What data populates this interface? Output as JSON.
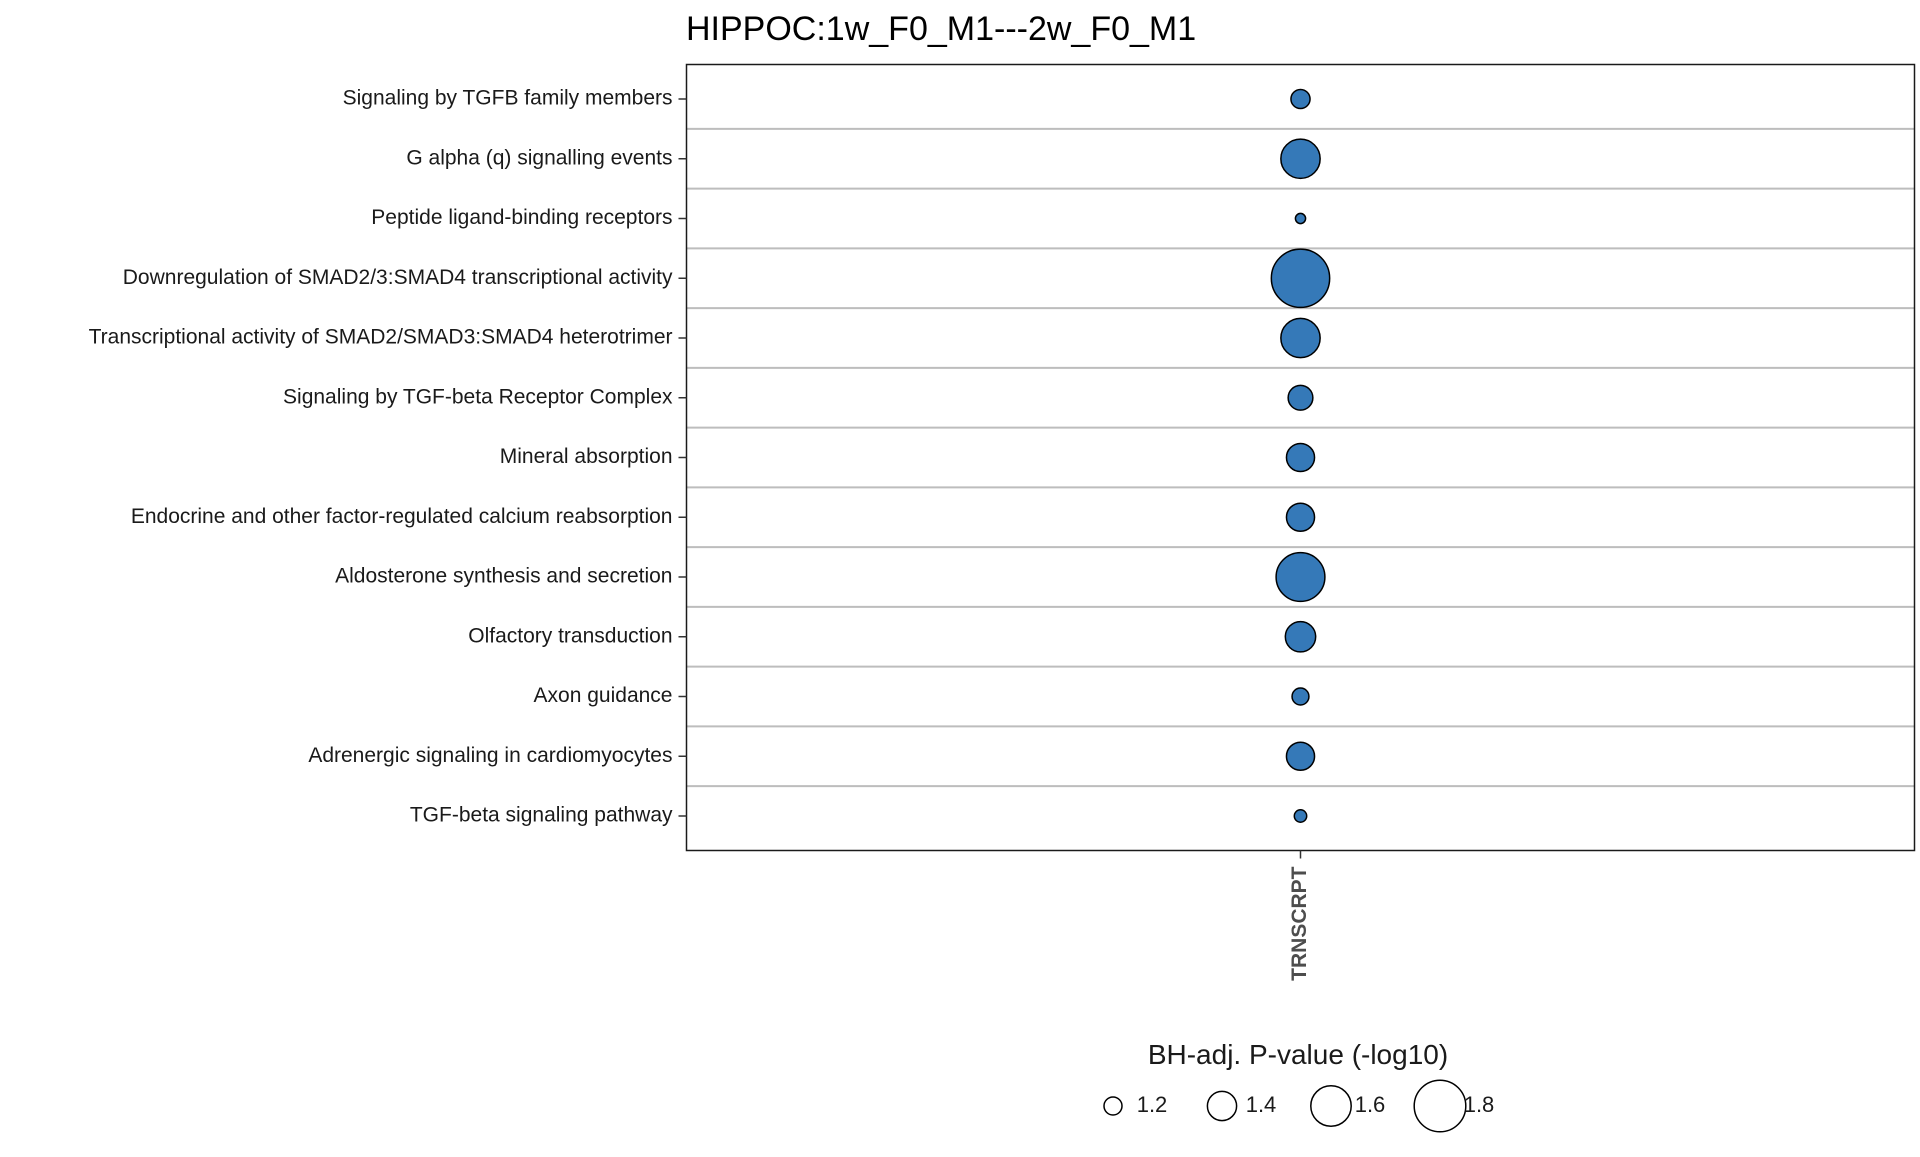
{
  "chart_data": {
    "type": "scatter",
    "title": "HIPPOC:1w_F0_M1---2w_F0_M1",
    "x_categories": [
      "TRNSCRPT"
    ],
    "y_categories": [
      "Signaling by TGFB family members",
      "G alpha (q) signalling events",
      "Peptide ligand-binding receptors",
      "Downregulation of SMAD2/3:SMAD4 transcriptional activity",
      "Transcriptional activity of SMAD2/SMAD3:SMAD4 heterotrimer",
      "Signaling by TGF-beta Receptor Complex",
      "Mineral absorption",
      "Endocrine and other factor-regulated calcium reabsorption",
      "Aldosterone synthesis and secretion",
      "Olfactory transduction",
      "Axon guidance",
      "Adrenergic signaling in cardiomyocytes",
      "TGF-beta signaling pathway"
    ],
    "points": [
      {
        "x": "TRNSCRPT",
        "y": "Signaling by TGFB family members",
        "size_value": 1.22
      },
      {
        "x": "TRNSCRPT",
        "y": "G alpha (q) signalling events",
        "size_value": 1.58
      },
      {
        "x": "TRNSCRPT",
        "y": "Peptide ligand-binding receptors",
        "size_value": 1.06
      },
      {
        "x": "TRNSCRPT",
        "y": "Downregulation of SMAD2/3:SMAD4 transcriptional activity",
        "size_value": 1.92
      },
      {
        "x": "TRNSCRPT",
        "y": "Transcriptional activity of SMAD2/SMAD3:SMAD4 heterotrimer",
        "size_value": 1.58
      },
      {
        "x": "TRNSCRPT",
        "y": "Signaling by TGF-beta Receptor Complex",
        "size_value": 1.32
      },
      {
        "x": "TRNSCRPT",
        "y": "Mineral absorption",
        "size_value": 1.38
      },
      {
        "x": "TRNSCRPT",
        "y": "Endocrine and other factor-regulated calcium reabsorption",
        "size_value": 1.38
      },
      {
        "x": "TRNSCRPT",
        "y": "Aldosterone synthesis and secretion",
        "size_value": 1.75
      },
      {
        "x": "TRNSCRPT",
        "y": "Olfactory transduction",
        "size_value": 1.42
      },
      {
        "x": "TRNSCRPT",
        "y": "Axon guidance",
        "size_value": 1.18
      },
      {
        "x": "TRNSCRPT",
        "y": "Adrenergic signaling in cardiomyocytes",
        "size_value": 1.38
      },
      {
        "x": "TRNSCRPT",
        "y": "TGF-beta signaling pathway",
        "size_value": 1.1
      }
    ],
    "size_legend": {
      "title": "BH-adj. P-value (-log10)",
      "values": [
        1.2,
        1.4,
        1.6,
        1.8
      ],
      "labels": [
        "1.2",
        "1.4",
        "1.6",
        "1.8"
      ],
      "position": "bottom"
    },
    "point_color": "#3579B8",
    "point_edge_color": "#000000",
    "grid": "horizontal",
    "legend_position": "bottom"
  }
}
